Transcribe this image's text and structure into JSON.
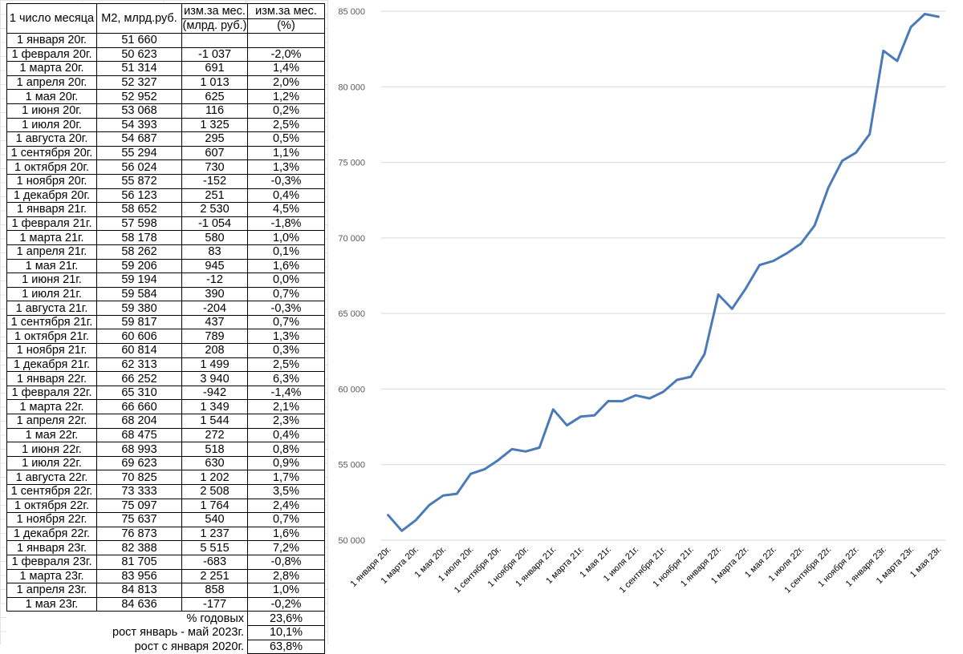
{
  "table": {
    "headers": {
      "col1": "1 число месяца",
      "col2": "М2, млрд.руб.",
      "col3_line1": "изм.за мес.",
      "col3_line2": "(млрд. руб.)",
      "col4_line1": "изм.за мес.",
      "col4_line2": "(%)"
    },
    "rows": [
      {
        "date": "1 января 20г.",
        "m2": "51 660",
        "abs": "",
        "pct": ""
      },
      {
        "date": "1 февраля 20г.",
        "m2": "50 623",
        "abs": "-1 037",
        "pct": "-2,0%"
      },
      {
        "date": "1 марта 20г.",
        "m2": "51 314",
        "abs": "691",
        "pct": "1,4%"
      },
      {
        "date": "1 апреля 20г.",
        "m2": "52 327",
        "abs": "1 013",
        "pct": "2,0%"
      },
      {
        "date": "1 мая 20г.",
        "m2": "52 952",
        "abs": "625",
        "pct": "1,2%"
      },
      {
        "date": "1 июня 20г.",
        "m2": "53 068",
        "abs": "116",
        "pct": "0,2%"
      },
      {
        "date": "1 июля 20г.",
        "m2": "54 393",
        "abs": "1 325",
        "pct": "2,5%"
      },
      {
        "date": "1 августа 20г.",
        "m2": "54 687",
        "abs": "295",
        "pct": "0,5%"
      },
      {
        "date": "1 сентября 20г.",
        "m2": "55 294",
        "abs": "607",
        "pct": "1,1%"
      },
      {
        "date": "1 октября 20г.",
        "m2": "56 024",
        "abs": "730",
        "pct": "1,3%"
      },
      {
        "date": "1 ноября 20г.",
        "m2": "55 872",
        "abs": "-152",
        "pct": "-0,3%"
      },
      {
        "date": "1 декабря 20г.",
        "m2": "56 123",
        "abs": "251",
        "pct": "0,4%"
      },
      {
        "date": "1 января 21г.",
        "m2": "58 652",
        "abs": "2 530",
        "pct": "4,5%"
      },
      {
        "date": "1 февраля 21г.",
        "m2": "57 598",
        "abs": "-1 054",
        "pct": "-1,8%"
      },
      {
        "date": "1 марта 21г.",
        "m2": "58 178",
        "abs": "580",
        "pct": "1,0%"
      },
      {
        "date": "1 апреля 21г.",
        "m2": "58 262",
        "abs": "83",
        "pct": "0,1%"
      },
      {
        "date": "1 мая 21г.",
        "m2": "59 206",
        "abs": "945",
        "pct": "1,6%"
      },
      {
        "date": "1 июня 21г.",
        "m2": "59 194",
        "abs": "-12",
        "pct": "0,0%"
      },
      {
        "date": "1 июля 21г.",
        "m2": "59 584",
        "abs": "390",
        "pct": "0,7%"
      },
      {
        "date": "1 августа 21г.",
        "m2": "59 380",
        "abs": "-204",
        "pct": "-0,3%"
      },
      {
        "date": "1 сентября 21г.",
        "m2": "59 817",
        "abs": "437",
        "pct": "0,7%"
      },
      {
        "date": "1 октября 21г.",
        "m2": "60 606",
        "abs": "789",
        "pct": "1,3%"
      },
      {
        "date": "1 ноября 21г.",
        "m2": "60 814",
        "abs": "208",
        "pct": "0,3%"
      },
      {
        "date": "1 декабря 21г.",
        "m2": "62 313",
        "abs": "1 499",
        "pct": "2,5%"
      },
      {
        "date": "1 января 22г.",
        "m2": "66 252",
        "abs": "3 940",
        "pct": "6,3%"
      },
      {
        "date": "1 февраля 22г.",
        "m2": "65 310",
        "abs": "-942",
        "pct": "-1,4%"
      },
      {
        "date": "1 марта 22г.",
        "m2": "66 660",
        "abs": "1 349",
        "pct": "2,1%"
      },
      {
        "date": "1 апреля 22г.",
        "m2": "68 204",
        "abs": "1 544",
        "pct": "2,3%"
      },
      {
        "date": "1 мая 22г.",
        "m2": "68 475",
        "abs": "272",
        "pct": "0,4%"
      },
      {
        "date": "1 июня 22г.",
        "m2": "68 993",
        "abs": "518",
        "pct": "0,8%"
      },
      {
        "date": "1 июля 22г.",
        "m2": "69 623",
        "abs": "630",
        "pct": "0,9%"
      },
      {
        "date": "1 августа 22г.",
        "m2": "70 825",
        "abs": "1 202",
        "pct": "1,7%"
      },
      {
        "date": "1 сентября 22г.",
        "m2": "73 333",
        "abs": "2 508",
        "pct": "3,5%"
      },
      {
        "date": "1 октября 22г.",
        "m2": "75 097",
        "abs": "1 764",
        "pct": "2,4%"
      },
      {
        "date": "1 ноября 22г.",
        "m2": "75 637",
        "abs": "540",
        "pct": "0,7%"
      },
      {
        "date": "1 декабря 22г.",
        "m2": "76 873",
        "abs": "1 237",
        "pct": "1,6%"
      },
      {
        "date": "1 января 23г.",
        "m2": "82 388",
        "abs": "5 515",
        "pct": "7,2%"
      },
      {
        "date": "1 февраля 23г.",
        "m2": "81 705",
        "abs": "-683",
        "pct": "-0,8%"
      },
      {
        "date": "1 марта 23г.",
        "m2": "83 956",
        "abs": "2 251",
        "pct": "2,8%"
      },
      {
        "date": "1 апреля 23г.",
        "m2": "84 813",
        "abs": "858",
        "pct": "1,0%"
      },
      {
        "date": "1 мая 23г.",
        "m2": "84 636",
        "abs": "-177",
        "pct": "-0,2%"
      }
    ],
    "summary": [
      {
        "label": "% годовых",
        "value": "23,6%"
      },
      {
        "label": "рост январь - май 2023г.",
        "value": "10,1%"
      },
      {
        "label": "рост с января 2020г.",
        "value": "63,8%"
      }
    ]
  },
  "chart_data": {
    "type": "line",
    "title": "",
    "xlabel": "",
    "ylabel": "",
    "ylim": [
      50000,
      85000
    ],
    "yticks": [
      50000,
      55000,
      60000,
      65000,
      70000,
      75000,
      80000,
      85000
    ],
    "ytick_labels": [
      "50 000",
      "55 000",
      "60 000",
      "65 000",
      "70 000",
      "75 000",
      "80 000",
      "85 000"
    ],
    "grid": true,
    "legend": "none",
    "line_color": "#4a7ab8",
    "gridline_color": "#d9d9d9",
    "x_labels_visible": [
      "1 января 20г.",
      "1 марта 20г.",
      "1 мая 20г.",
      "1 июля 20г.",
      "1 сентября 20г.",
      "1 ноября 20г.",
      "1 января 21г.",
      "1 марта 21г.",
      "1 мая 21г.",
      "1 июля 21г.",
      "1 сентября 21г.",
      "1 ноября 21г.",
      "1 января 22г.",
      "1 марта 22г.",
      "1 мая 22г.",
      "1 июля 22г.",
      "1 сентября 22г.",
      "1 ноября 22г.",
      "1 января 23г.",
      "1 марта 23г.",
      "1 мая 23г."
    ],
    "categories": [
      "1 января 20г.",
      "1 февраля 20г.",
      "1 марта 20г.",
      "1 апреля 20г.",
      "1 мая 20г.",
      "1 июня 20г.",
      "1 июля 20г.",
      "1 августа 20г.",
      "1 сентября 20г.",
      "1 октября 20г.",
      "1 ноября 20г.",
      "1 декабря 20г.",
      "1 января 21г.",
      "1 февраля 21г.",
      "1 марта 21г.",
      "1 апреля 21г.",
      "1 мая 21г.",
      "1 июня 21г.",
      "1 июля 21г.",
      "1 августа 21г.",
      "1 сентября 21г.",
      "1 октября 21г.",
      "1 ноября 21г.",
      "1 декабря 21г.",
      "1 января 22г.",
      "1 февраля 22г.",
      "1 марта 22г.",
      "1 апреля 22г.",
      "1 мая 22г.",
      "1 июня 22г.",
      "1 июля 22г.",
      "1 августа 22г.",
      "1 сентября 22г.",
      "1 октября 22г.",
      "1 ноября 22г.",
      "1 декабря 22г.",
      "1 января 23г.",
      "1 февраля 23г.",
      "1 марта 23г.",
      "1 апреля 23г.",
      "1 мая 23г."
    ],
    "values": [
      51660,
      50623,
      51314,
      52327,
      52952,
      53068,
      54393,
      54687,
      55294,
      56024,
      55872,
      56123,
      58652,
      57598,
      58178,
      58262,
      59206,
      59194,
      59584,
      59380,
      59817,
      60606,
      60814,
      62313,
      66252,
      65310,
      66660,
      68204,
      68475,
      68993,
      69623,
      70825,
      73333,
      75097,
      75637,
      76873,
      82388,
      81705,
      83956,
      84813,
      84636
    ]
  }
}
